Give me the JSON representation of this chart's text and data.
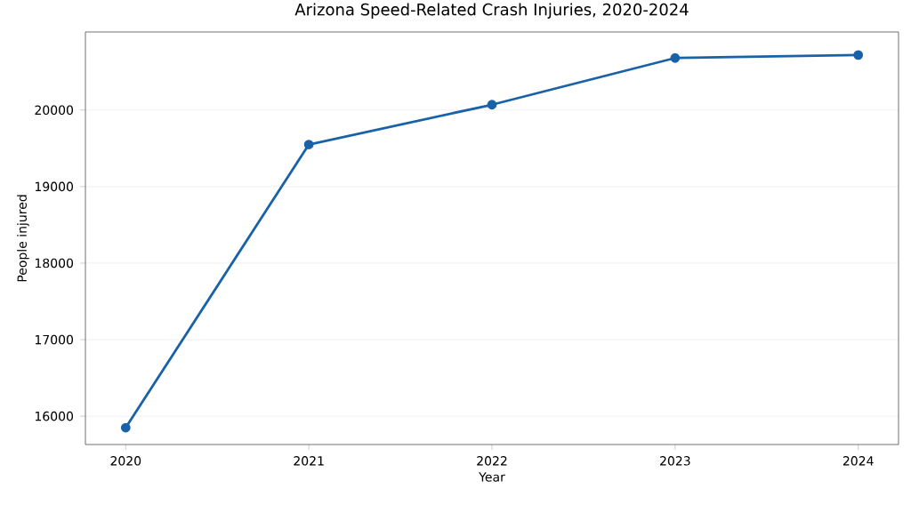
{
  "chart_data": {
    "type": "line",
    "title": "Arizona Speed-Related Crash Injuries, 2020-2024",
    "xlabel": "Year",
    "ylabel": "People injured",
    "x": [
      2020,
      2021,
      2022,
      2023,
      2024
    ],
    "series": [
      {
        "color": "#1a62a8",
        "values": [
          15850,
          19550,
          20070,
          20680,
          20720
        ]
      }
    ],
    "xlim": [
      2019.78,
      2024.22
    ],
    "xticks": [
      2020,
      2021,
      2022,
      2023,
      2024
    ],
    "ylim": [
      15630,
      21020
    ],
    "yticks": [
      16000,
      17000,
      18000,
      19000,
      20000
    ],
    "grid": "y",
    "marker": "circle",
    "line_style": "solid"
  }
}
